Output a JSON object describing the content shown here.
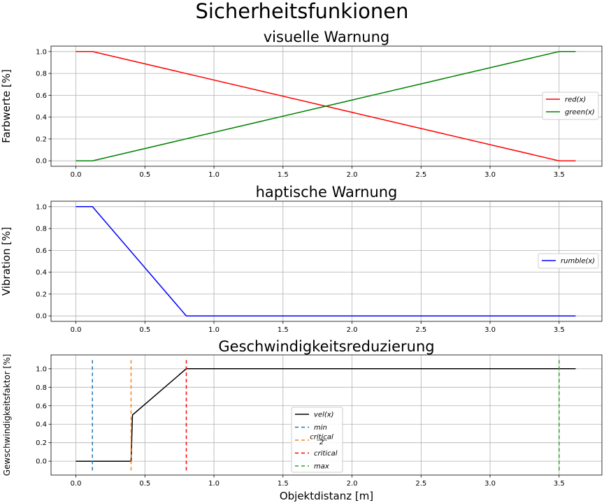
{
  "figure": {
    "title": "Sicherheitsfunkionen"
  },
  "chart_data": [
    {
      "type": "line",
      "title": "visuelle Warnung",
      "xlabel": "",
      "ylabel": "Farbwerte [%]",
      "xlim": [
        -0.18,
        3.81
      ],
      "ylim": [
        -0.05,
        1.05
      ],
      "xticks": [
        0.0,
        0.5,
        1.0,
        1.5,
        2.0,
        2.5,
        3.0,
        3.5
      ],
      "yticks": [
        0.0,
        0.2,
        0.4,
        0.6,
        0.8,
        1.0
      ],
      "grid": true,
      "legend_position": "center-right",
      "series": [
        {
          "name": "red(x)",
          "color": "#ff0000",
          "dash": "",
          "x": [
            0.0,
            0.12,
            3.5,
            3.62
          ],
          "y": [
            1.0,
            1.0,
            0.0,
            0.0
          ]
        },
        {
          "name": "green(x)",
          "color": "#008000",
          "dash": "",
          "x": [
            0.0,
            0.12,
            3.5,
            3.62
          ],
          "y": [
            0.0,
            0.0,
            1.0,
            1.0
          ]
        }
      ]
    },
    {
      "type": "line",
      "title": "haptische Warnung",
      "xlabel": "",
      "ylabel": "Vibration [%]",
      "xlim": [
        -0.18,
        3.81
      ],
      "ylim": [
        -0.05,
        1.05
      ],
      "xticks": [
        0.0,
        0.5,
        1.0,
        1.5,
        2.0,
        2.5,
        3.0,
        3.5
      ],
      "yticks": [
        0.0,
        0.2,
        0.4,
        0.6,
        0.8,
        1.0
      ],
      "grid": true,
      "legend_position": "center-right",
      "series": [
        {
          "name": "rumble(x)",
          "color": "#0000ff",
          "dash": "",
          "x": [
            0.0,
            0.12,
            0.8,
            3.62
          ],
          "y": [
            1.0,
            1.0,
            0.0,
            0.0
          ]
        }
      ]
    },
    {
      "type": "line",
      "title": "Geschwindigkeitsreduzierung",
      "xlabel": "Objektdistanz [m]",
      "ylabel": "Gewschwindigkeitsfaktor [%]",
      "xlim": [
        -0.18,
        3.81
      ],
      "ylim": [
        -0.15,
        1.15
      ],
      "xticks": [
        0.0,
        0.5,
        1.0,
        1.5,
        2.0,
        2.5,
        3.0,
        3.5
      ],
      "yticks": [
        0.0,
        0.2,
        0.4,
        0.6,
        0.8,
        1.0
      ],
      "grid": true,
      "legend_position": "center-bottom",
      "series": [
        {
          "name": "vel(x)",
          "color": "#000000",
          "dash": "",
          "x": [
            0.0,
            0.4,
            0.41,
            0.8,
            3.62
          ],
          "y": [
            0.0,
            0.0,
            0.5,
            1.0,
            1.0
          ]
        },
        {
          "name": "min",
          "color": "#1f77b4",
          "dash": "5,4",
          "x": [
            0.12,
            0.12
          ],
          "y": [
            -0.1,
            1.1
          ]
        },
        {
          "name": "critical/2",
          "legend_numerator": "critical",
          "legend_denominator": "2",
          "color": "#ff7f0e",
          "dash": "5,4",
          "x": [
            0.4,
            0.4
          ],
          "y": [
            -0.1,
            1.1
          ]
        },
        {
          "name": "critical",
          "color": "#ff0000",
          "dash": "5,4",
          "x": [
            0.8,
            0.8
          ],
          "y": [
            -0.1,
            1.1
          ]
        },
        {
          "name": "max",
          "color": "#2ca02c",
          "dash": "5,4",
          "x": [
            3.5,
            3.5
          ],
          "y": [
            -0.1,
            1.1
          ]
        }
      ]
    }
  ]
}
